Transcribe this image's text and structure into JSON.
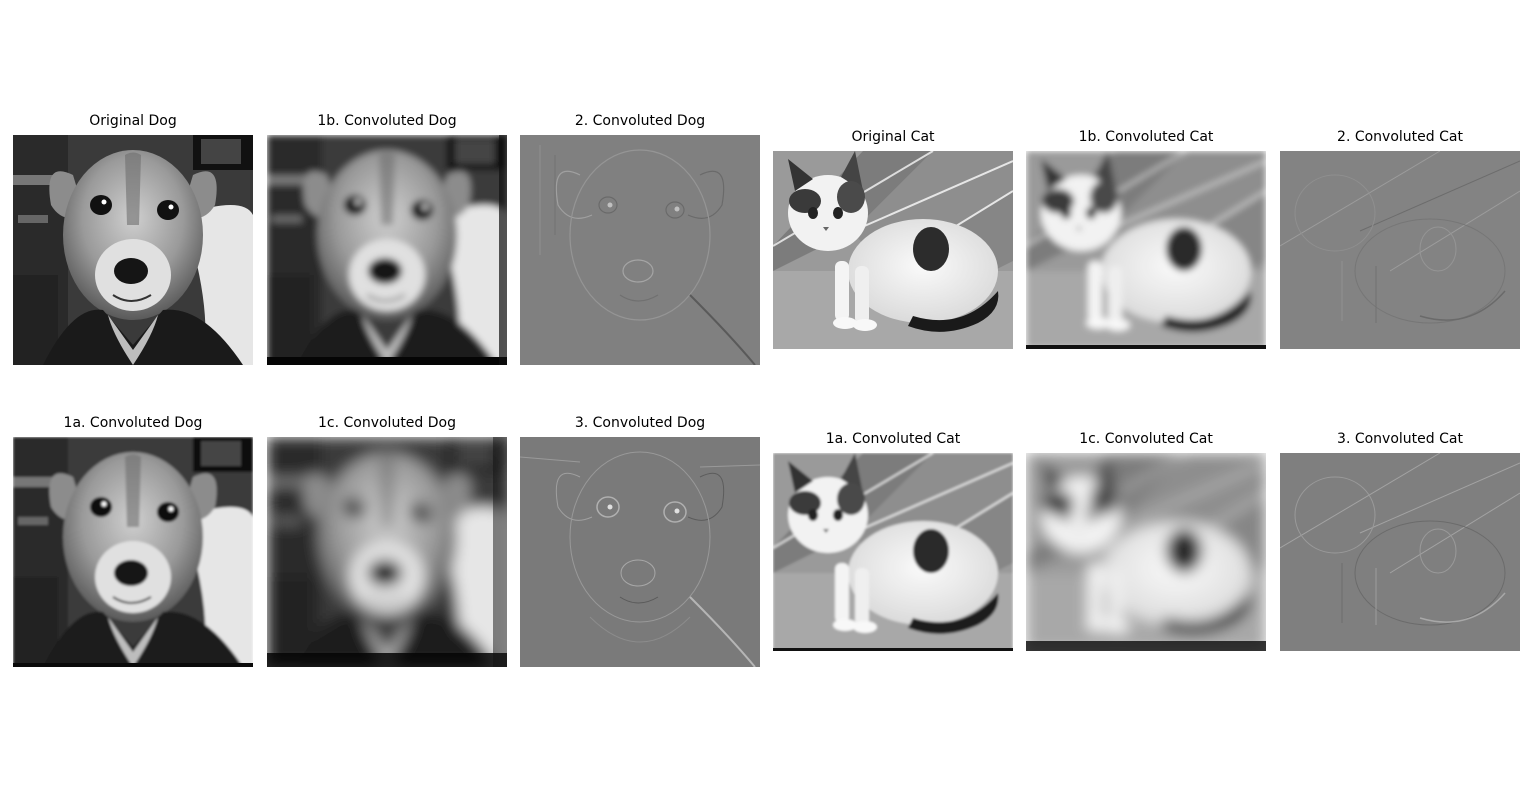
{
  "panels": {
    "dog_original": {
      "title": "Original Dog",
      "image": "dog-photo",
      "style": "sharp"
    },
    "dog_1b": {
      "title": "1b. Convoluted Dog",
      "image": "dog-photo",
      "style": "blur-medium"
    },
    "dog_2": {
      "title": "2. Convoluted Dog",
      "image": "dog-photo",
      "style": "emboss"
    },
    "cat_original": {
      "title": "Original Cat",
      "image": "cat-photo",
      "style": "sharp"
    },
    "cat_1b": {
      "title": "1b. Convoluted Cat",
      "image": "cat-photo",
      "style": "blur-medium"
    },
    "cat_2": {
      "title": "2. Convoluted Cat",
      "image": "cat-photo",
      "style": "emboss"
    },
    "dog_1a": {
      "title": "1a. Convoluted Dog",
      "image": "dog-photo",
      "style": "blur-light"
    },
    "dog_1c": {
      "title": "1c. Convoluted Dog",
      "image": "dog-photo",
      "style": "blur-heavy"
    },
    "dog_3": {
      "title": "3. Convoluted Dog",
      "image": "dog-photo",
      "style": "edge"
    },
    "cat_1a": {
      "title": "1a. Convoluted Cat",
      "image": "cat-photo",
      "style": "blur-light"
    },
    "cat_1c": {
      "title": "1c. Convoluted Cat",
      "image": "cat-photo",
      "style": "blur-heavy"
    },
    "cat_3": {
      "title": "3. Convoluted Cat",
      "image": "cat-photo",
      "style": "edge"
    }
  },
  "colors": {
    "background": "#ffffff",
    "title_text": "#000000",
    "emboss_gray": "#808080"
  }
}
